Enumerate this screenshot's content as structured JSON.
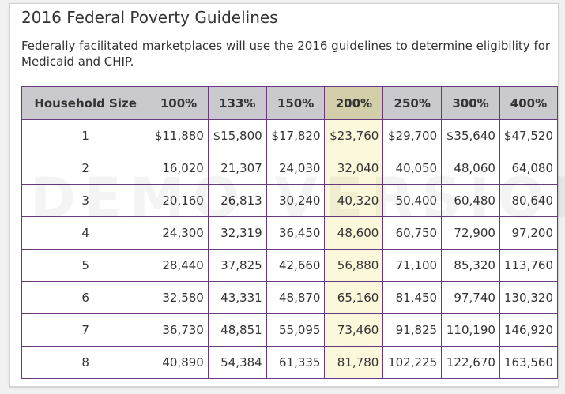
{
  "title": "2016 Federal Poverty Guidelines",
  "description": "Federally facilitated marketplaces will use the 2016 guidelines to determine eligibility for Medicaid and CHIP.",
  "watermark": "DEMO VERSION",
  "table": {
    "headers": [
      "Household Size",
      "100%",
      "133%",
      "150%",
      "200%",
      "250%",
      "300%",
      "400%"
    ],
    "highlighted_column": "200%",
    "rows": [
      [
        "1",
        "$11,880",
        "$15,800",
        "$17,820",
        "$23,760",
        "$29,700",
        "$35,640",
        "$47,520"
      ],
      [
        "2",
        "16,020",
        "21,307",
        "24,030",
        "32,040",
        "40,050",
        "48,060",
        "64,080"
      ],
      [
        "3",
        "20,160",
        "26,813",
        "30,240",
        "40,320",
        "50,400",
        "60,480",
        "80,640"
      ],
      [
        "4",
        "24,300",
        "32,319",
        "36,450",
        "48,600",
        "60,750",
        "72,900",
        "97,200"
      ],
      [
        "5",
        "28,440",
        "37,825",
        "42,660",
        "56,880",
        "71,100",
        "85,320",
        "113,760"
      ],
      [
        "6",
        "32,580",
        "43,331",
        "48,870",
        "65,160",
        "81,450",
        "97,740",
        "130,320"
      ],
      [
        "7",
        "36,730",
        "48,851",
        "55,095",
        "73,460",
        "91,825",
        "110,190",
        "146,920"
      ],
      [
        "8",
        "40,890",
        "54,384",
        "61,335",
        "81,780",
        "102,225",
        "122,670",
        "163,560"
      ]
    ]
  },
  "colors": {
    "border": "#6b3a7e",
    "header_bg": "#c9c9ce",
    "highlight_header_bg": "#d2ceaa",
    "highlight_cell_bg": "#fbf8db"
  }
}
